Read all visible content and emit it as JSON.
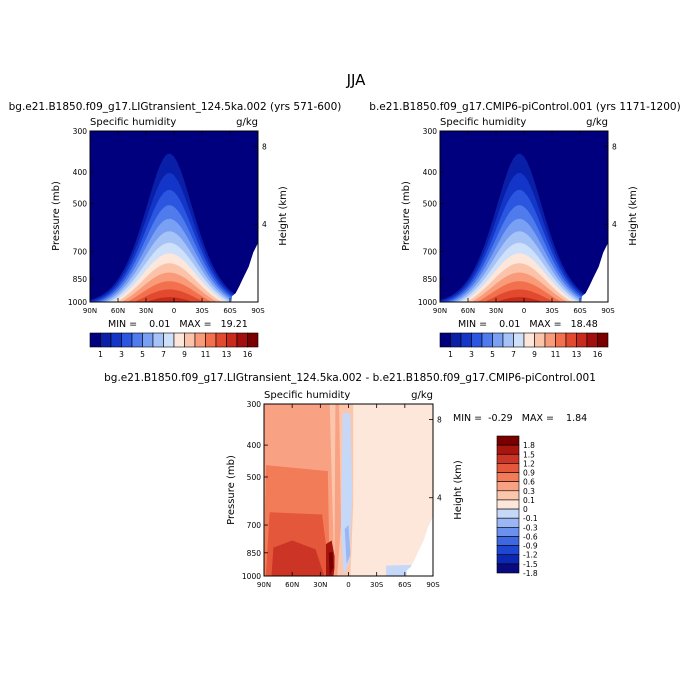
{
  "figure": {
    "title": "JJA"
  },
  "colors": {
    "land_mask": "#ffffff",
    "frame": "#000000",
    "ramp_abs": [
      "#00007f",
      "#0a1fa8",
      "#1436c8",
      "#2a56e0",
      "#4f7bec",
      "#7aa0f4",
      "#a6c3f8",
      "#cfe0fa",
      "#fde6da",
      "#fcc3ab",
      "#f99a78",
      "#f2704d",
      "#e24a30",
      "#c92a1c",
      "#a30f0f",
      "#7a0000"
    ],
    "ramp_diff": [
      "#0a0a80",
      "#0c27b4",
      "#1e46d2",
      "#3e68e2",
      "#6b90ee",
      "#9bb6f4",
      "#c6d8f8",
      "#fde6da",
      "#fcc6ad",
      "#f8a283",
      "#f27b58",
      "#e4573a",
      "#cc3425",
      "#a8140e",
      "#7a0000"
    ]
  },
  "panels": {
    "p1": {
      "top_title": "bg.e21.B1850.f09_g17.LIGtransient_124.5ka.002 (yrs 571-600)",
      "left_label": "Specific humidity",
      "right_label": "g/kg",
      "y_axis_label": "Pressure (mb)",
      "y2_axis_label": "Height (km)",
      "stats": "MIN =    0.01   MAX =   19.21",
      "lb_labels": [
        "1",
        "3",
        "5",
        "7",
        "9",
        "11",
        "13",
        "16"
      ]
    },
    "p2": {
      "top_title": "b.e21.B1850.f09_g17.CMIP6-piControl.001 (yrs 1171-1200)",
      "left_label": "Specific humidity",
      "right_label": "g/kg",
      "y_axis_label": "Pressure (mb)",
      "y2_axis_label": "Height (km)",
      "stats": "MIN =    0.01   MAX =   18.48",
      "lb_labels": [
        "1",
        "3",
        "5",
        "7",
        "9",
        "11",
        "13",
        "16"
      ]
    },
    "p3": {
      "top_title": "bg.e21.B1850.f09_g17.LIGtransient_124.5ka.002 - b.e21.B1850.f09_g17.CMIP6-piControl.001",
      "left_label": "Specific humidity",
      "right_label": "g/kg",
      "y_axis_label": "Pressure (mb)",
      "y2_axis_label": "Height (km)",
      "stats": "MIN =  -0.29   MAX =    1.84",
      "lb_labels": [
        "1.8",
        "1.5",
        "1.2",
        "0.9",
        "0.6",
        "0.3",
        "0.1",
        "0",
        "-0.1",
        "-0.3",
        "-0.6",
        "-0.9",
        "-1.2",
        "-1.5",
        "-1.8"
      ]
    }
  },
  "chart_data": [
    {
      "type": "heatmap",
      "name_ref": "p1",
      "x_ticks": [
        "90N",
        "60N",
        "30N",
        "0",
        "30S",
        "60S",
        "90S"
      ],
      "x_values": [
        90,
        60,
        30,
        0,
        -30,
        -60,
        -90
      ],
      "y_ticks": [
        "300",
        "400",
        "500",
        "700",
        "850",
        "1000"
      ],
      "y_values": [
        300,
        400,
        500,
        700,
        850,
        1000
      ],
      "y2_ticks": [
        "8",
        "4"
      ],
      "y2_values": [
        8,
        4
      ],
      "levels": [
        1,
        2,
        3,
        4,
        5,
        6,
        7,
        8,
        9,
        10,
        11,
        12,
        13,
        14,
        15,
        16
      ],
      "min": 0.01,
      "max": 19.21
    },
    {
      "type": "heatmap",
      "name_ref": "p2",
      "x_ticks": [
        "90N",
        "60N",
        "30N",
        "0",
        "30S",
        "60S",
        "90S"
      ],
      "x_values": [
        90,
        60,
        30,
        0,
        -30,
        -60,
        -90
      ],
      "y_ticks": [
        "300",
        "400",
        "500",
        "700",
        "850",
        "1000"
      ],
      "y_values": [
        300,
        400,
        500,
        700,
        850,
        1000
      ],
      "y2_ticks": [
        "8",
        "4"
      ],
      "y2_values": [
        8,
        4
      ],
      "levels": [
        1,
        2,
        3,
        4,
        5,
        6,
        7,
        8,
        9,
        10,
        11,
        12,
        13,
        14,
        15,
        16
      ],
      "min": 0.01,
      "max": 18.48
    },
    {
      "type": "heatmap",
      "name_ref": "p3",
      "x_ticks": [
        "90N",
        "60N",
        "30N",
        "0",
        "30S",
        "60S",
        "90S"
      ],
      "x_values": [
        90,
        60,
        30,
        0,
        -30,
        -60,
        -90
      ],
      "y_ticks": [
        "300",
        "400",
        "500",
        "700",
        "850",
        "1000"
      ],
      "y_values": [
        300,
        400,
        500,
        700,
        850,
        1000
      ],
      "y2_ticks": [
        "8",
        "4"
      ],
      "y2_values": [
        8,
        4
      ],
      "levels": [
        -1.8,
        -1.5,
        -1.2,
        -0.9,
        -0.6,
        -0.3,
        -0.1,
        0,
        0.1,
        0.3,
        0.6,
        0.9,
        1.2,
        1.5,
        1.8
      ],
      "min": -0.29,
      "max": 1.84
    }
  ]
}
